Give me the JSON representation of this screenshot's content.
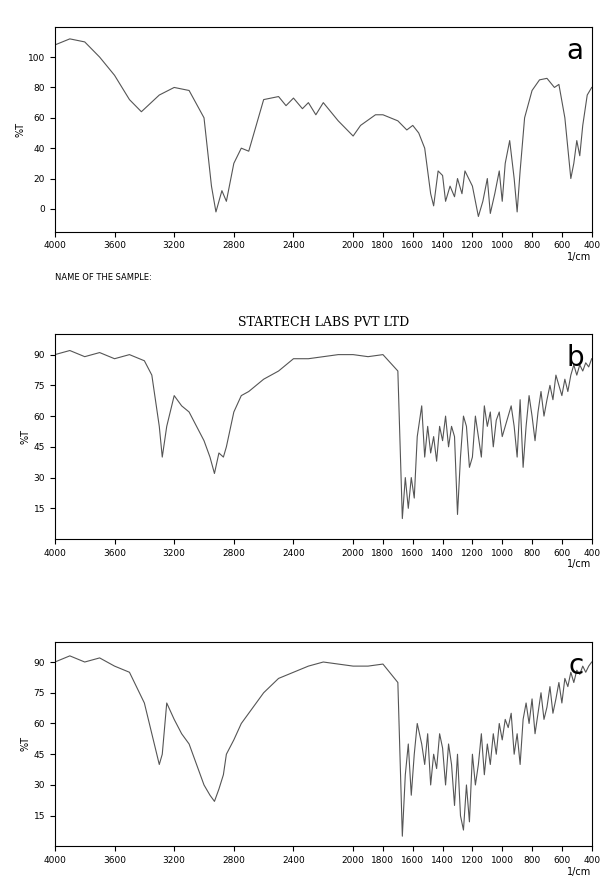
{
  "chart_data": [
    {
      "type": "line",
      "annotations": [
        "a",
        "NAME OF THE SAMPLE:"
      ],
      "x_label": "1/cm",
      "y_label": "%T",
      "x": [
        4000,
        3900,
        3800,
        3700,
        3600,
        3500,
        3420,
        3300,
        3200,
        3100,
        3000,
        2950,
        2920,
        2880,
        2850,
        2800,
        2750,
        2700,
        2650,
        2600,
        2500,
        2450,
        2400,
        2340,
        2300,
        2250,
        2200,
        2100,
        2000,
        1950,
        1850,
        1800,
        1700,
        1640,
        1600,
        1560,
        1520,
        1480,
        1460,
        1430,
        1400,
        1380,
        1350,
        1320,
        1300,
        1270,
        1250,
        1200,
        1160,
        1130,
        1100,
        1080,
        1050,
        1020,
        1000,
        980,
        950,
        920,
        900,
        880,
        850,
        800,
        750,
        700,
        650,
        620,
        580,
        540,
        520,
        500,
        480,
        460,
        430,
        400
      ],
      "values": [
        108,
        112,
        110,
        100,
        88,
        72,
        64,
        75,
        80,
        78,
        60,
        15,
        -2,
        12,
        5,
        30,
        40,
        38,
        55,
        72,
        74,
        68,
        73,
        66,
        70,
        62,
        70,
        58,
        48,
        55,
        62,
        62,
        58,
        52,
        55,
        50,
        40,
        10,
        2,
        25,
        22,
        5,
        15,
        8,
        20,
        10,
        25,
        15,
        -5,
        5,
        20,
        -3,
        10,
        25,
        5,
        30,
        45,
        20,
        -2,
        25,
        60,
        78,
        85,
        86,
        80,
        82,
        60,
        20,
        30,
        45,
        35,
        55,
        75,
        80
      ],
      "color": "#555555",
      "xlim": [
        4000,
        400
      ],
      "xticks": [
        4000,
        3600,
        3200,
        2800,
        2400,
        2000,
        1800,
        1600,
        1400,
        1200,
        1000,
        800,
        600,
        400
      ],
      "ylim": [
        -15,
        120
      ],
      "yticks": [
        0,
        20,
        40,
        60,
        80,
        100
      ],
      "grid": false
    },
    {
      "type": "line",
      "title": "STARTECH LABS PVT LTD",
      "annotations": [
        "b"
      ],
      "x_label": "1/cm",
      "y_label": "%T",
      "x": [
        4000,
        3900,
        3800,
        3700,
        3600,
        3500,
        3400,
        3350,
        3300,
        3280,
        3250,
        3200,
        3150,
        3100,
        3050,
        3000,
        2960,
        2930,
        2900,
        2870,
        2850,
        2800,
        2750,
        2700,
        2600,
        2500,
        2400,
        2300,
        2200,
        2100,
        2000,
        1900,
        1800,
        1700,
        1670,
        1650,
        1630,
        1610,
        1590,
        1570,
        1540,
        1520,
        1500,
        1480,
        1460,
        1440,
        1420,
        1400,
        1380,
        1360,
        1340,
        1320,
        1300,
        1280,
        1260,
        1240,
        1220,
        1200,
        1180,
        1160,
        1140,
        1120,
        1100,
        1080,
        1060,
        1040,
        1020,
        1000,
        980,
        960,
        940,
        920,
        900,
        880,
        860,
        840,
        820,
        800,
        780,
        760,
        740,
        720,
        700,
        680,
        660,
        640,
        620,
        600,
        580,
        560,
        540,
        520,
        500,
        480,
        460,
        440,
        420,
        400
      ],
      "values": [
        90,
        92,
        89,
        91,
        88,
        90,
        87,
        80,
        55,
        40,
        55,
        70,
        65,
        62,
        55,
        48,
        40,
        32,
        42,
        40,
        45,
        62,
        70,
        72,
        78,
        82,
        88,
        88,
        89,
        90,
        90,
        89,
        90,
        82,
        10,
        30,
        15,
        30,
        20,
        50,
        65,
        40,
        55,
        42,
        50,
        38,
        55,
        48,
        60,
        45,
        55,
        50,
        12,
        40,
        60,
        55,
        35,
        40,
        60,
        50,
        40,
        65,
        55,
        62,
        45,
        58,
        62,
        50,
        55,
        60,
        65,
        55,
        40,
        68,
        35,
        55,
        70,
        60,
        48,
        62,
        72,
        60,
        68,
        75,
        68,
        80,
        75,
        70,
        78,
        72,
        80,
        85,
        80,
        85,
        82,
        86,
        84,
        88
      ],
      "color": "#555555",
      "xlim": [
        4000,
        400
      ],
      "xticks": [
        4000,
        3600,
        3200,
        2800,
        2400,
        2000,
        1800,
        1600,
        1400,
        1200,
        1000,
        800,
        600,
        400
      ],
      "ylim": [
        0,
        100
      ],
      "yticks": [
        15,
        30,
        45,
        60,
        75,
        90
      ],
      "grid": false
    },
    {
      "type": "line",
      "annotations": [
        "c"
      ],
      "x_label": "1/cm",
      "y_label": "%T",
      "x": [
        4000,
        3900,
        3800,
        3700,
        3600,
        3500,
        3400,
        3350,
        3300,
        3280,
        3250,
        3200,
        3150,
        3100,
        3050,
        3000,
        2960,
        2930,
        2900,
        2870,
        2850,
        2800,
        2750,
        2700,
        2600,
        2500,
        2400,
        2300,
        2200,
        2100,
        2000,
        1900,
        1800,
        1700,
        1670,
        1650,
        1630,
        1610,
        1590,
        1570,
        1540,
        1520,
        1500,
        1480,
        1460,
        1440,
        1420,
        1400,
        1380,
        1360,
        1340,
        1320,
        1300,
        1280,
        1260,
        1240,
        1220,
        1200,
        1180,
        1160,
        1140,
        1120,
        1100,
        1080,
        1060,
        1040,
        1020,
        1000,
        980,
        960,
        940,
        920,
        900,
        880,
        860,
        840,
        820,
        800,
        780,
        760,
        740,
        720,
        700,
        680,
        660,
        640,
        620,
        600,
        580,
        560,
        540,
        520,
        500,
        480,
        460,
        440,
        420,
        400
      ],
      "values": [
        90,
        93,
        90,
        92,
        88,
        85,
        70,
        55,
        40,
        45,
        70,
        62,
        55,
        50,
        40,
        30,
        25,
        22,
        28,
        35,
        45,
        52,
        60,
        65,
        75,
        82,
        85,
        88,
        90,
        89,
        88,
        88,
        89,
        80,
        5,
        35,
        50,
        25,
        45,
        60,
        50,
        40,
        55,
        30,
        45,
        38,
        55,
        48,
        30,
        50,
        40,
        20,
        45,
        15,
        8,
        30,
        12,
        45,
        30,
        40,
        55,
        35,
        50,
        40,
        55,
        45,
        60,
        52,
        62,
        58,
        65,
        45,
        55,
        40,
        62,
        70,
        60,
        72,
        55,
        65,
        75,
        62,
        68,
        78,
        65,
        72,
        80,
        70,
        82,
        78,
        85,
        80,
        86,
        84,
        88,
        85,
        88,
        90
      ],
      "color": "#555555",
      "xlim": [
        4000,
        400
      ],
      "xticks": [
        4000,
        3600,
        3200,
        2800,
        2400,
        2000,
        1800,
        1600,
        1400,
        1200,
        1000,
        800,
        600,
        400
      ],
      "ylim": [
        0,
        100
      ],
      "yticks": [
        15,
        30,
        45,
        60,
        75,
        90
      ],
      "grid": false
    }
  ]
}
